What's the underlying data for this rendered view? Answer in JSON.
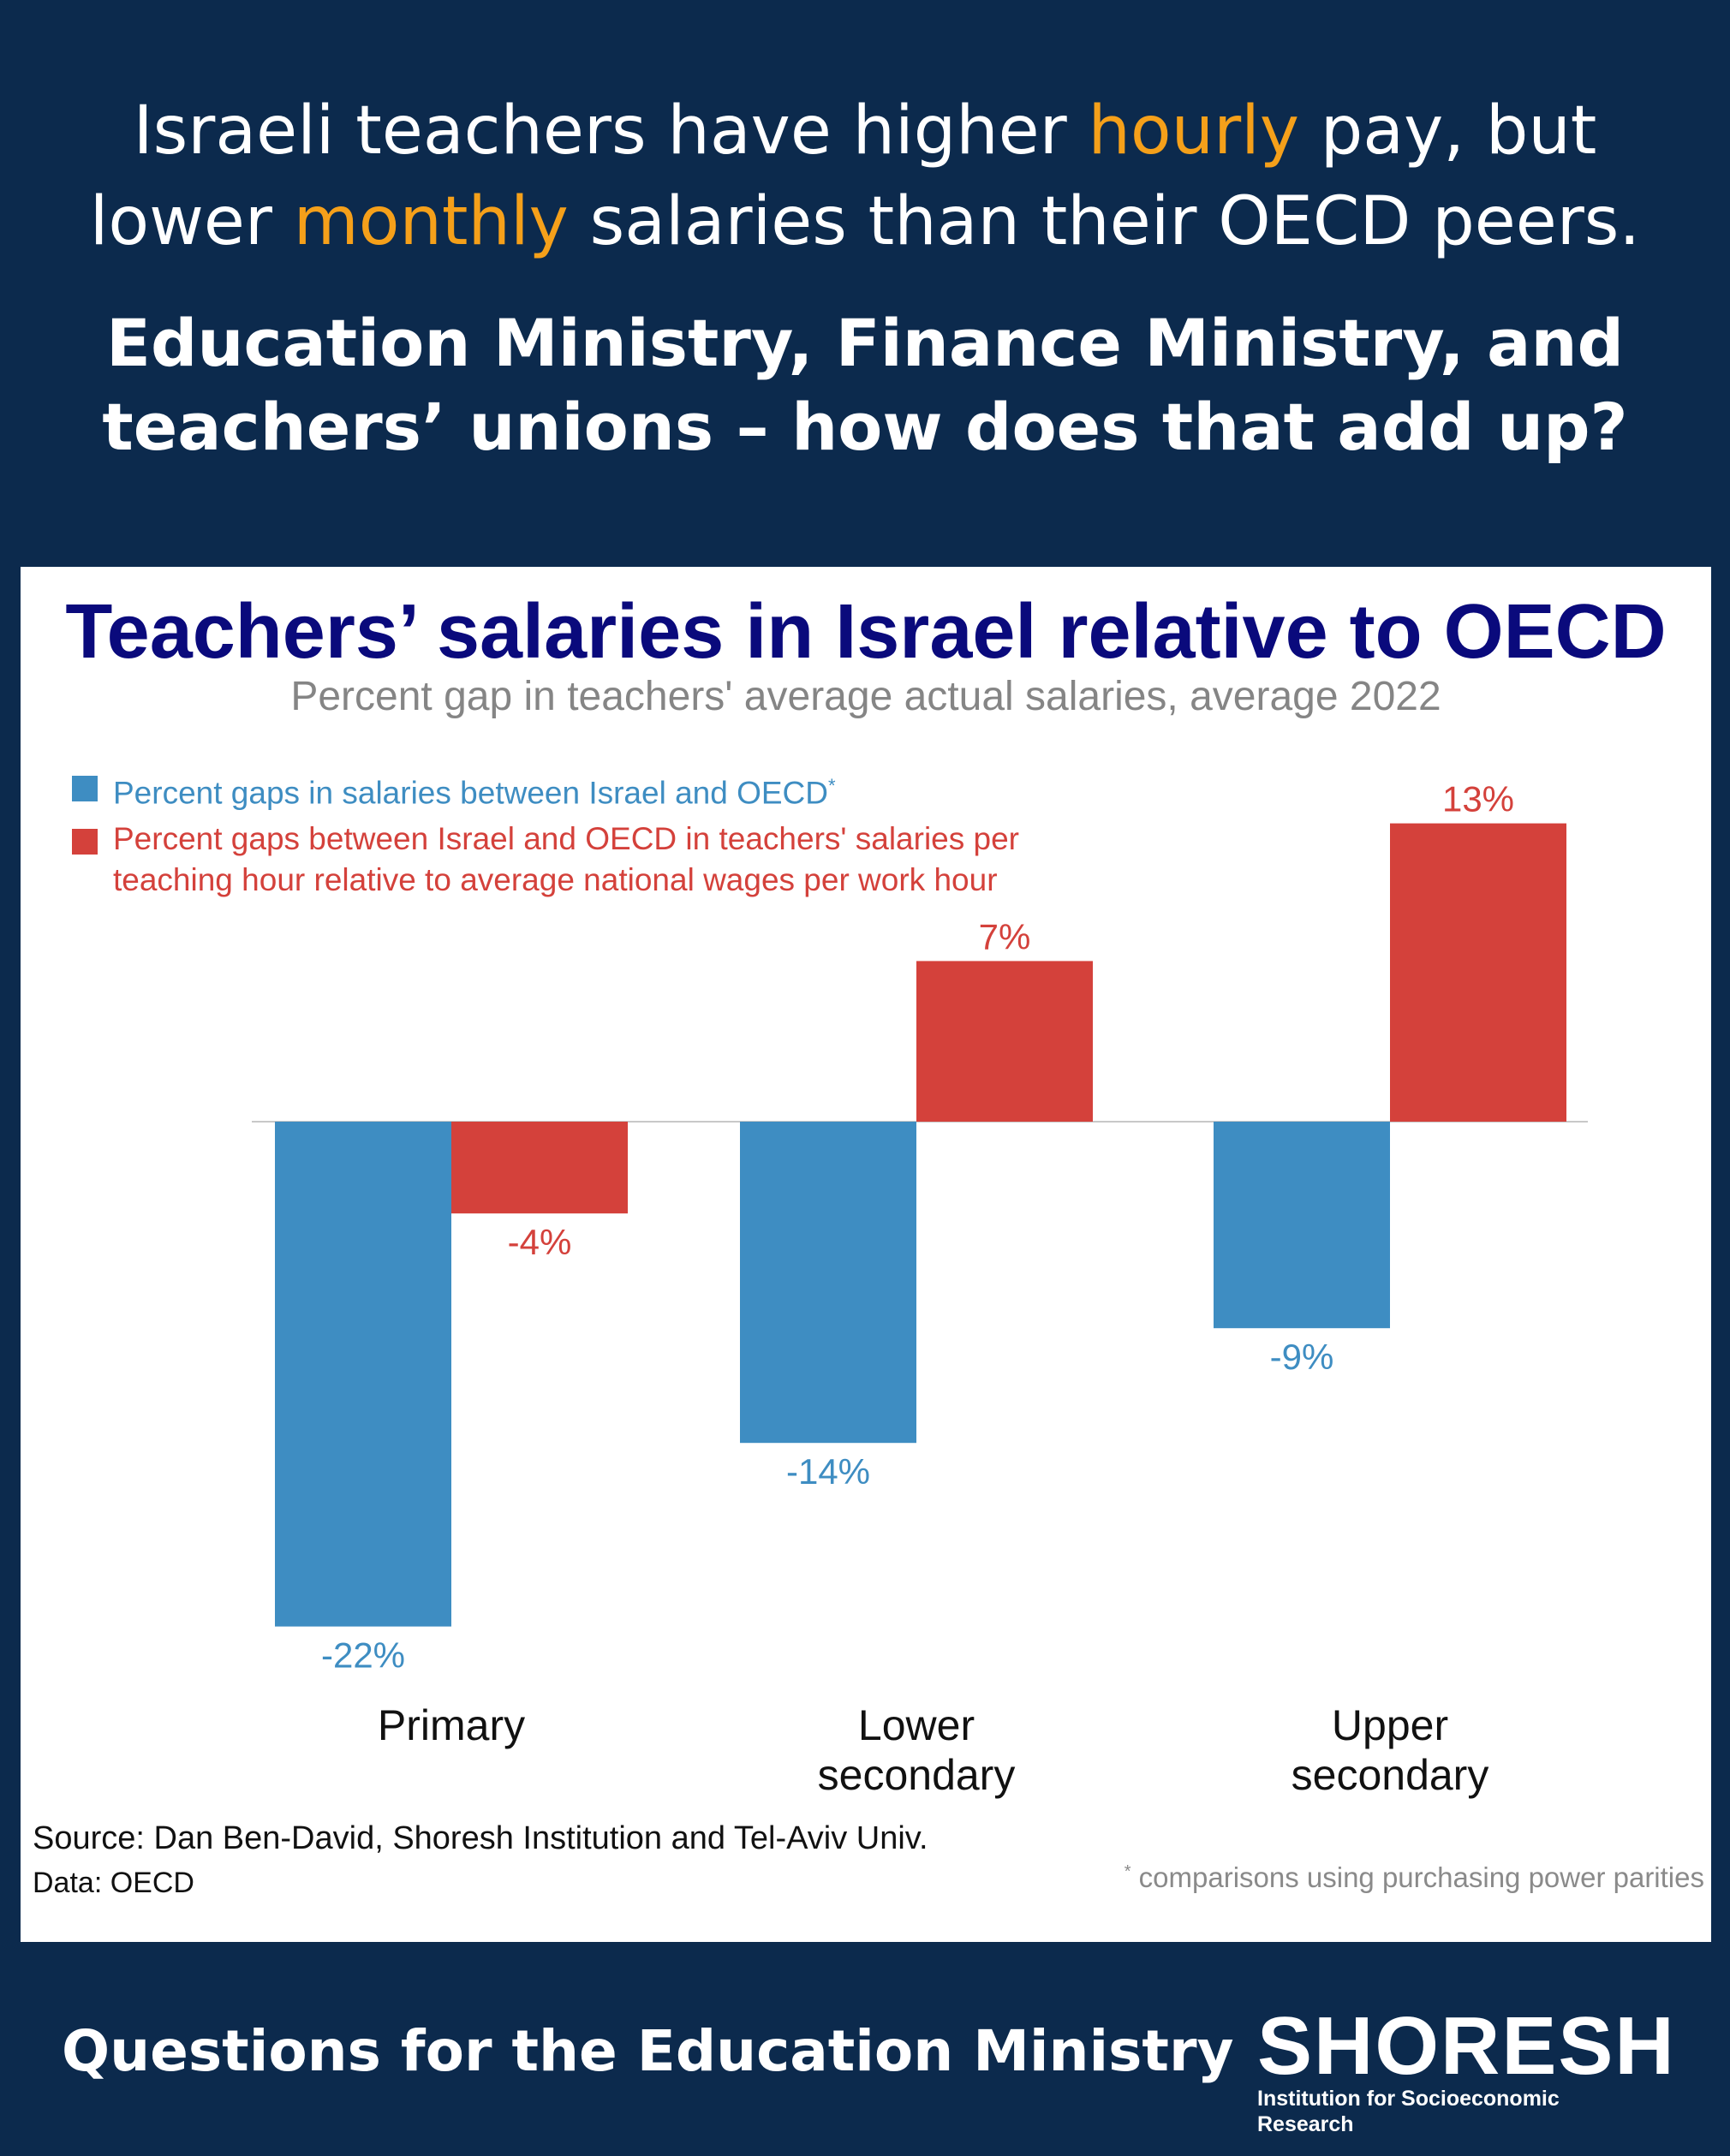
{
  "header": {
    "line1_a": "Israeli teachers have higher ",
    "line1_hl": "hourly",
    "line1_b": " pay, but",
    "line2_a": "lower ",
    "line2_hl": "monthly",
    "line2_b": " salaries than their OECD peers.",
    "highlight_color": "#f5a01a",
    "subhead_line1": "Education Ministry, Finance Ministry, and",
    "subhead_line2": "teachers’ unions – how does that add up?"
  },
  "chart_data": {
    "type": "bar",
    "title": "Teachers’ salaries in Israel relative to OECD",
    "subtitle": "Percent gap in teachers' average actual salaries, average 2022",
    "categories": [
      [
        "Primary"
      ],
      [
        "Lower",
        "secondary"
      ],
      [
        "Upper",
        "secondary"
      ]
    ],
    "series": [
      {
        "name": "Percent gaps in salaries between Israel and OECD",
        "name_marker": "*",
        "color": "#3e8dc2",
        "values": [
          -22,
          -14,
          -9
        ],
        "labels": [
          "-22%",
          "-14%",
          "-9%"
        ]
      },
      {
        "name_lines": [
          "Percent gaps between Israel and OECD in teachers' salaries per",
          "teaching hour relative to average national wages per work hour"
        ],
        "color": "#d4413b",
        "values": [
          -4,
          7,
          13
        ],
        "labels": [
          "-4%",
          "7%",
          "13%"
        ]
      }
    ],
    "ylim": [
      -25,
      16
    ],
    "grid": false,
    "legend_position": "top-left"
  },
  "notes": {
    "source": "Source: Dan Ben-David, Shoresh Institution and Tel-Aviv Univ.",
    "data": "Data: OECD",
    "footnote_marker": "*",
    "footnote": " comparisons using purchasing power parities"
  },
  "footer": {
    "title": "Questions for the Education Ministry",
    "logo_word": "SHORESH",
    "logo_tagline": "Institution for Socioeconomic Research"
  }
}
